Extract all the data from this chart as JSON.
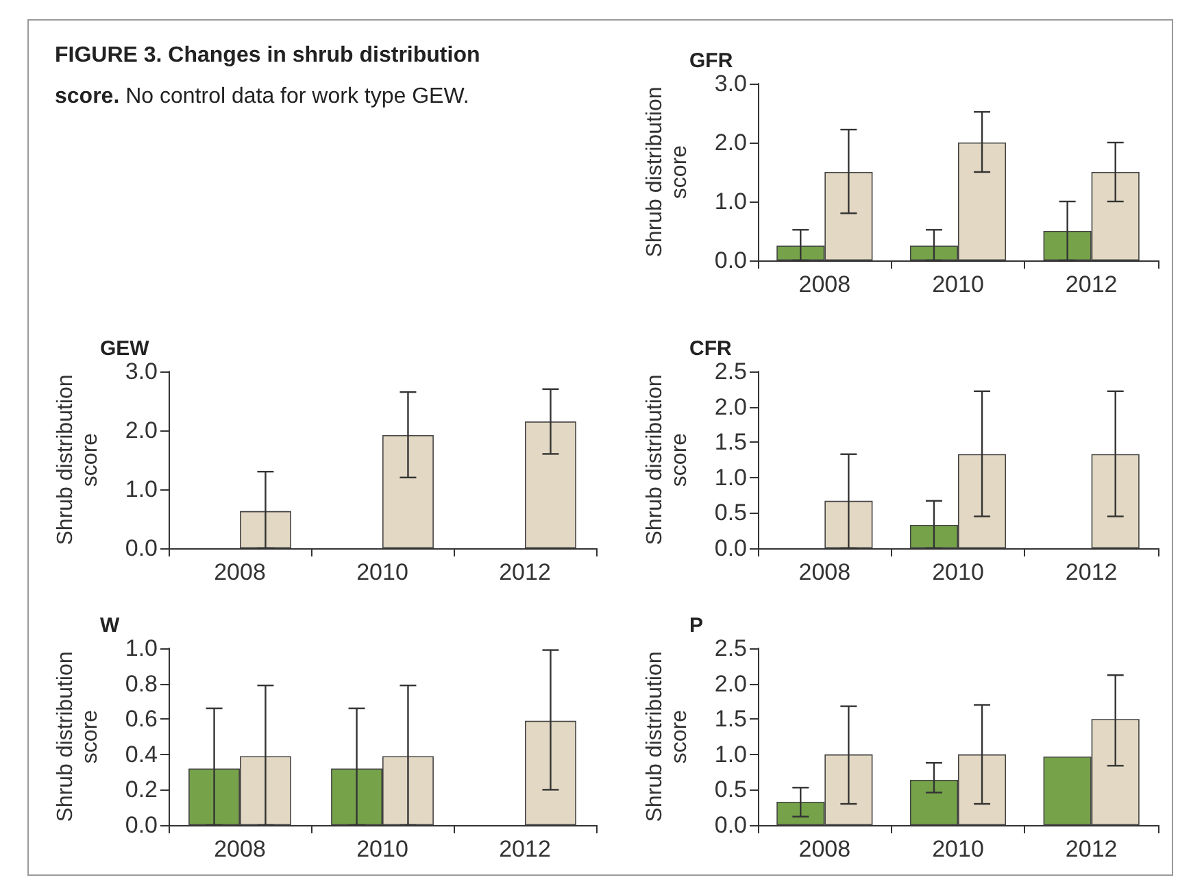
{
  "chart_data": [
    {
      "type": "other",
      "title": "FIGURE 3. Changes in shrub distribution score.",
      "subtitle": "No control data for work type GEW."
    },
    {
      "type": "bar",
      "title": "GFR",
      "ylabel": "Shrub distribution score",
      "categories": [
        "2008",
        "2010",
        "2012"
      ],
      "ylim": [
        0,
        3
      ],
      "yticks": [
        {
          "value": 0,
          "label": "0.0"
        },
        {
          "value": 1,
          "label": "1.0"
        },
        {
          "value": 2,
          "label": "2.0"
        },
        {
          "value": 3,
          "label": "3.0"
        }
      ],
      "grid": false,
      "series": [
        {
          "color": "#76a34a",
          "values": [
            0.25,
            0.25,
            0.5
          ],
          "errors": [
            [
              0,
              0.52
            ],
            [
              0,
              0.52
            ],
            [
              0,
              1.0
            ]
          ]
        },
        {
          "color": "#e3d8c3",
          "values": [
            1.5,
            2.0,
            1.5
          ],
          "errors": [
            [
              0.8,
              2.22
            ],
            [
              1.5,
              2.52
            ],
            [
              1.0,
              2.0
            ]
          ]
        }
      ]
    },
    {
      "type": "bar",
      "title": "GEW",
      "ylabel": "Shrub distribution score",
      "categories": [
        "2008",
        "2010",
        "2012"
      ],
      "ylim": [
        0,
        3
      ],
      "yticks": [
        {
          "value": 0,
          "label": "0.0"
        },
        {
          "value": 1,
          "label": "1.0"
        },
        {
          "value": 2,
          "label": "2.0"
        },
        {
          "value": 3,
          "label": "3.0"
        }
      ],
      "grid": false,
      "series": [
        {
          "color": "#76a34a",
          "values": [
            null,
            null,
            null
          ],
          "errors": [
            null,
            null,
            null
          ]
        },
        {
          "color": "#e3d8c3",
          "values": [
            0.63,
            1.92,
            2.15
          ],
          "errors": [
            [
              0,
              1.3
            ],
            [
              1.2,
              2.65
            ],
            [
              1.6,
              2.7
            ]
          ]
        }
      ]
    },
    {
      "type": "bar",
      "title": "CFR",
      "ylabel": "Shrub distribution score",
      "categories": [
        "2008",
        "2010",
        "2012"
      ],
      "ylim": [
        0,
        2.5
      ],
      "yticks": [
        {
          "value": 0,
          "label": "0.0"
        },
        {
          "value": 0.5,
          "label": "0.5"
        },
        {
          "value": 1,
          "label": "1.0"
        },
        {
          "value": 1.5,
          "label": "1.5"
        },
        {
          "value": 2,
          "label": "2.0"
        },
        {
          "value": 2.5,
          "label": "2.5"
        }
      ],
      "grid": false,
      "series": [
        {
          "color": "#76a34a",
          "values": [
            null,
            0.33,
            null
          ],
          "errors": [
            null,
            [
              0,
              0.67
            ],
            null
          ]
        },
        {
          "color": "#e3d8c3",
          "values": [
            0.67,
            1.33,
            1.33
          ],
          "errors": [
            [
              0,
              1.33
            ],
            [
              0.45,
              2.22
            ],
            [
              0.45,
              2.22
            ]
          ]
        }
      ]
    },
    {
      "type": "bar",
      "title": "W",
      "ylabel": "Shrub distribution score",
      "categories": [
        "2008",
        "2010",
        "2012"
      ],
      "ylim": [
        0,
        1
      ],
      "yticks": [
        {
          "value": 0,
          "label": "0.0"
        },
        {
          "value": 0.2,
          "label": "0.2"
        },
        {
          "value": 0.4,
          "label": "0.4"
        },
        {
          "value": 0.6,
          "label": "0.6"
        },
        {
          "value": 0.8,
          "label": "0.8"
        },
        {
          "value": 1,
          "label": "1.0"
        }
      ],
      "grid": false,
      "series": [
        {
          "color": "#76a34a",
          "values": [
            0.32,
            0.32,
            null
          ],
          "errors": [
            [
              0,
              0.66
            ],
            [
              0,
              0.66
            ],
            null
          ]
        },
        {
          "color": "#e3d8c3",
          "values": [
            0.39,
            0.39,
            0.59
          ],
          "errors": [
            [
              0,
              0.79
            ],
            [
              0,
              0.79
            ],
            [
              0.2,
              0.99
            ]
          ]
        }
      ]
    },
    {
      "type": "bar",
      "title": "P",
      "ylabel": "Shrub distribution score",
      "categories": [
        "2008",
        "2010",
        "2012"
      ],
      "ylim": [
        0,
        2.5
      ],
      "yticks": [
        {
          "value": 0,
          "label": "0.0"
        },
        {
          "value": 0.5,
          "label": "0.5"
        },
        {
          "value": 1,
          "label": "1.0"
        },
        {
          "value": 1.5,
          "label": "1.5"
        },
        {
          "value": 2,
          "label": "2.0"
        },
        {
          "value": 2.5,
          "label": "2.5"
        }
      ],
      "grid": false,
      "series": [
        {
          "color": "#76a34a",
          "values": [
            0.33,
            0.64,
            0.97
          ],
          "errors": [
            [
              0.12,
              0.53
            ],
            [
              0.46,
              0.88
            ],
            null
          ]
        },
        {
          "color": "#e3d8c3",
          "values": [
            1.0,
            1.0,
            1.5
          ],
          "errors": [
            [
              0.3,
              1.68
            ],
            [
              0.3,
              1.7
            ],
            [
              0.84,
              2.12
            ]
          ]
        }
      ]
    }
  ]
}
